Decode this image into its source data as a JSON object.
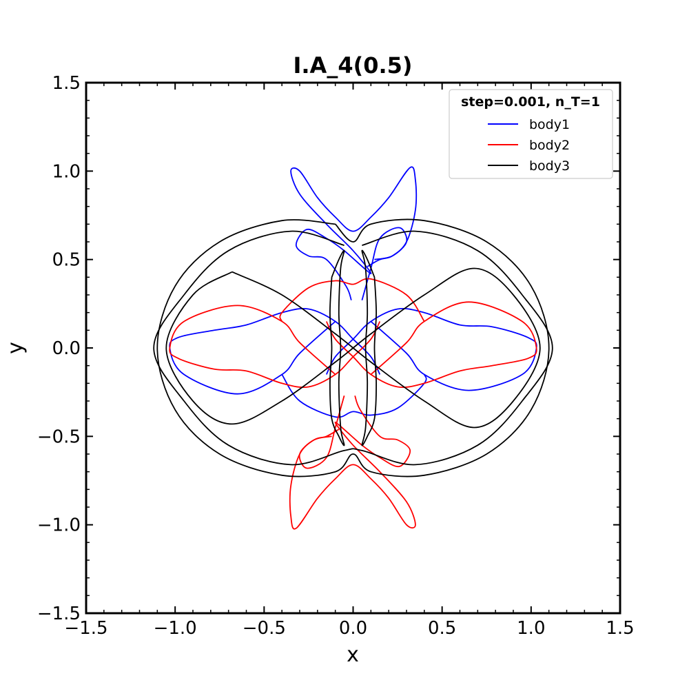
{
  "chart_data": {
    "type": "line",
    "title": "I.A_4(0.5)",
    "xlabel": "x",
    "ylabel": "y",
    "xlim": [
      -1.5,
      1.5
    ],
    "ylim": [
      -1.5,
      1.5
    ],
    "xticks": [
      -1.5,
      -1.0,
      -0.5,
      0.0,
      0.5,
      1.0,
      1.5
    ],
    "yticks": [
      -1.5,
      -1.0,
      -0.5,
      0.0,
      0.5,
      1.0,
      1.5
    ],
    "xtick_labels": [
      "−1.5",
      "−1.0",
      "−0.5",
      "0.0",
      "0.5",
      "1.0",
      "1.5"
    ],
    "ytick_labels": [
      "−1.5",
      "−1.0",
      "−0.5",
      "0.0",
      "0.5",
      "1.0",
      "1.5"
    ],
    "grid": false,
    "legend": {
      "title": "step=0.001, n_T=1",
      "placement": "upper-right"
    },
    "series": [
      {
        "name": "body1",
        "color": "#0000ff",
        "segments": [
          [
            [
              -0.15,
              -0.15
            ],
            [
              -0.1,
              -0.05
            ],
            [
              0.0,
              0.05
            ],
            [
              0.1,
              0.15
            ],
            [
              0.25,
              0.22
            ],
            [
              0.4,
              0.2
            ],
            [
              0.6,
              0.13
            ],
            [
              0.78,
              0.12
            ],
            [
              0.98,
              0.06
            ],
            [
              1.03,
              0.0
            ],
            [
              0.95,
              -0.15
            ],
            [
              0.65,
              -0.24
            ],
            [
              0.4,
              -0.15
            ],
            [
              0.3,
              -0.03
            ],
            [
              0.1,
              0.15
            ]
          ],
          [
            [
              0.15,
              -0.15
            ],
            [
              0.1,
              -0.05
            ],
            [
              0.0,
              0.05
            ],
            [
              -0.1,
              0.15
            ],
            [
              -0.25,
              0.22
            ],
            [
              -0.4,
              0.2
            ],
            [
              -0.6,
              0.13
            ],
            [
              -0.78,
              0.1
            ],
            [
              -0.98,
              0.06
            ],
            [
              -1.03,
              0.0
            ],
            [
              -0.95,
              -0.15
            ],
            [
              -0.65,
              -0.26
            ],
            [
              -0.4,
              -0.15
            ],
            [
              -0.3,
              -0.03
            ],
            [
              -0.1,
              0.15
            ]
          ],
          [
            [
              -0.4,
              -0.15
            ],
            [
              -0.3,
              -0.3
            ],
            [
              -0.1,
              -0.39
            ],
            [
              0.0,
              -0.36
            ],
            [
              0.1,
              -0.38
            ],
            [
              0.25,
              -0.34
            ],
            [
              0.4,
              -0.2
            ],
            [
              0.4,
              -0.15
            ]
          ],
          [
            [
              -0.01,
              0.27
            ],
            [
              -0.04,
              0.35
            ],
            [
              -0.15,
              0.5
            ],
            [
              -0.25,
              0.52
            ],
            [
              -0.32,
              0.58
            ],
            [
              -0.26,
              0.67
            ],
            [
              -0.15,
              0.62
            ],
            [
              -0.05,
              0.55
            ],
            [
              0.1,
              0.42
            ],
            [
              0.0,
              0.55
            ],
            [
              -0.15,
              0.7
            ],
            [
              -0.3,
              0.87
            ],
            [
              -0.35,
              1.0
            ],
            [
              -0.3,
              1.0
            ],
            [
              -0.2,
              0.85
            ],
            [
              -0.1,
              0.74
            ],
            [
              0.0,
              0.66
            ],
            [
              0.1,
              0.74
            ],
            [
              0.2,
              0.85
            ],
            [
              0.32,
              1.02
            ],
            [
              0.35,
              0.95
            ],
            [
              0.35,
              0.78
            ],
            [
              0.3,
              0.6
            ],
            [
              0.22,
              0.52
            ],
            [
              0.15,
              0.5
            ],
            [
              0.08,
              0.46
            ]
          ],
          [
            [
              0.05,
              0.27
            ],
            [
              0.1,
              0.45
            ],
            [
              0.15,
              0.62
            ],
            [
              0.26,
              0.68
            ],
            [
              0.3,
              0.6
            ],
            [
              0.22,
              0.52
            ],
            [
              0.12,
              0.5
            ]
          ]
        ]
      },
      {
        "name": "body2",
        "color": "#ff0000",
        "segments": [
          [
            [
              0.15,
              0.15
            ],
            [
              0.1,
              0.05
            ],
            [
              0.0,
              -0.05
            ],
            [
              -0.1,
              -0.15
            ],
            [
              -0.25,
              -0.22
            ],
            [
              -0.4,
              -0.2
            ],
            [
              -0.6,
              -0.13
            ],
            [
              -0.78,
              -0.12
            ],
            [
              -0.98,
              -0.06
            ],
            [
              -1.03,
              0.0
            ],
            [
              -0.95,
              0.15
            ],
            [
              -0.65,
              0.24
            ],
            [
              -0.4,
              0.15
            ],
            [
              -0.3,
              0.03
            ],
            [
              -0.1,
              -0.15
            ]
          ],
          [
            [
              -0.15,
              0.15
            ],
            [
              -0.1,
              0.05
            ],
            [
              0.0,
              -0.05
            ],
            [
              0.1,
              -0.15
            ],
            [
              0.25,
              -0.22
            ],
            [
              0.4,
              -0.2
            ],
            [
              0.6,
              -0.13
            ],
            [
              0.78,
              -0.1
            ],
            [
              0.98,
              -0.06
            ],
            [
              1.03,
              0.0
            ],
            [
              0.95,
              0.15
            ],
            [
              0.65,
              0.26
            ],
            [
              0.4,
              0.15
            ],
            [
              0.3,
              0.03
            ],
            [
              0.1,
              -0.15
            ]
          ],
          [
            [
              0.4,
              0.15
            ],
            [
              0.3,
              0.3
            ],
            [
              0.1,
              0.39
            ],
            [
              0.0,
              0.36
            ],
            [
              -0.1,
              0.38
            ],
            [
              -0.25,
              0.34
            ],
            [
              -0.4,
              0.2
            ],
            [
              -0.4,
              0.15
            ]
          ],
          [
            [
              0.01,
              -0.27
            ],
            [
              0.04,
              -0.35
            ],
            [
              0.15,
              -0.5
            ],
            [
              0.25,
              -0.52
            ],
            [
              0.32,
              -0.58
            ],
            [
              0.26,
              -0.67
            ],
            [
              0.15,
              -0.62
            ],
            [
              0.05,
              -0.55
            ],
            [
              -0.1,
              -0.42
            ],
            [
              0.0,
              -0.55
            ],
            [
              0.15,
              -0.7
            ],
            [
              0.3,
              -0.87
            ],
            [
              0.35,
              -1.0
            ],
            [
              0.3,
              -1.0
            ],
            [
              0.2,
              -0.85
            ],
            [
              0.1,
              -0.74
            ],
            [
              0.0,
              -0.66
            ],
            [
              -0.1,
              -0.74
            ],
            [
              -0.2,
              -0.85
            ],
            [
              -0.32,
              -1.02
            ],
            [
              -0.35,
              -0.95
            ],
            [
              -0.35,
              -0.78
            ],
            [
              -0.3,
              -0.6
            ],
            [
              -0.22,
              -0.52
            ],
            [
              -0.15,
              -0.5
            ],
            [
              -0.08,
              -0.46
            ]
          ],
          [
            [
              -0.05,
              -0.27
            ],
            [
              -0.1,
              -0.45
            ],
            [
              -0.15,
              -0.62
            ],
            [
              -0.26,
              -0.68
            ],
            [
              -0.3,
              -0.6
            ],
            [
              -0.22,
              -0.52
            ],
            [
              -0.12,
              -0.5
            ]
          ]
        ]
      },
      {
        "name": "body3",
        "color": "#000000",
        "segments": [
          [
            [
              -0.1,
              0.7
            ],
            [
              -0.4,
              0.72
            ],
            [
              -0.75,
              0.6
            ],
            [
              -1.0,
              0.35
            ],
            [
              -1.1,
              0.0
            ],
            [
              -1.0,
              -0.35
            ],
            [
              -0.75,
              -0.6
            ],
            [
              -0.4,
              -0.72
            ],
            [
              -0.1,
              -0.7
            ],
            [
              0.0,
              -0.6
            ],
            [
              0.1,
              -0.7
            ],
            [
              0.4,
              -0.72
            ],
            [
              0.75,
              -0.6
            ],
            [
              1.0,
              -0.35
            ],
            [
              1.1,
              0.0
            ],
            [
              1.0,
              0.35
            ],
            [
              0.75,
              0.6
            ],
            [
              0.4,
              0.72
            ],
            [
              0.1,
              0.7
            ],
            [
              0.0,
              0.6
            ],
            [
              -0.1,
              0.7
            ]
          ],
          [
            [
              -0.05,
              0.58
            ],
            [
              -0.35,
              0.66
            ],
            [
              -0.7,
              0.55
            ],
            [
              -0.95,
              0.3
            ],
            [
              -1.12,
              0.0
            ],
            [
              -0.95,
              -0.3
            ],
            [
              -0.7,
              -0.55
            ],
            [
              -0.35,
              -0.66
            ],
            [
              -0.05,
              -0.58
            ],
            [
              0.05,
              -0.58
            ],
            [
              0.35,
              -0.66
            ],
            [
              0.7,
              -0.55
            ],
            [
              0.95,
              -0.3
            ],
            [
              1.12,
              0.0
            ],
            [
              0.95,
              0.3
            ],
            [
              0.7,
              0.55
            ],
            [
              0.35,
              0.66
            ],
            [
              0.05,
              0.58
            ]
          ],
          [
            [
              -0.68,
              0.43
            ],
            [
              -0.9,
              0.3
            ],
            [
              -1.05,
              0.0
            ],
            [
              -0.9,
              -0.3
            ],
            [
              -0.68,
              -0.43
            ],
            [
              -0.4,
              -0.3
            ],
            [
              -0.1,
              -0.08
            ],
            [
              0.1,
              0.08
            ],
            [
              0.4,
              0.3
            ],
            [
              0.68,
              0.45
            ],
            [
              0.9,
              0.3
            ],
            [
              1.05,
              0.0
            ],
            [
              0.9,
              -0.3
            ],
            [
              0.68,
              -0.45
            ],
            [
              0.4,
              -0.3
            ],
            [
              0.1,
              -0.08
            ],
            [
              -0.1,
              0.08
            ],
            [
              -0.4,
              0.3
            ],
            [
              -0.68,
              0.43
            ]
          ],
          [
            [
              -0.12,
              0.4
            ],
            [
              -0.13,
              0.2
            ],
            [
              -0.12,
              0.0
            ],
            [
              -0.13,
              -0.2
            ],
            [
              -0.12,
              -0.4
            ],
            [
              -0.08,
              -0.5
            ],
            [
              -0.05,
              -0.55
            ],
            [
              -0.07,
              -0.45
            ],
            [
              -0.08,
              -0.2
            ],
            [
              -0.07,
              0.0
            ],
            [
              -0.08,
              0.2
            ],
            [
              -0.07,
              0.45
            ],
            [
              -0.05,
              0.55
            ],
            [
              -0.08,
              0.5
            ],
            [
              -0.12,
              0.4
            ]
          ],
          [
            [
              0.12,
              0.4
            ],
            [
              0.13,
              0.2
            ],
            [
              0.12,
              0.0
            ],
            [
              0.13,
              -0.2
            ],
            [
              0.12,
              -0.4
            ],
            [
              0.08,
              -0.5
            ],
            [
              0.05,
              -0.55
            ],
            [
              0.07,
              -0.45
            ],
            [
              0.08,
              -0.2
            ],
            [
              0.07,
              0.0
            ],
            [
              0.08,
              0.2
            ],
            [
              0.07,
              0.45
            ],
            [
              0.05,
              0.55
            ],
            [
              0.08,
              0.5
            ],
            [
              0.12,
              0.4
            ]
          ]
        ]
      }
    ]
  }
}
